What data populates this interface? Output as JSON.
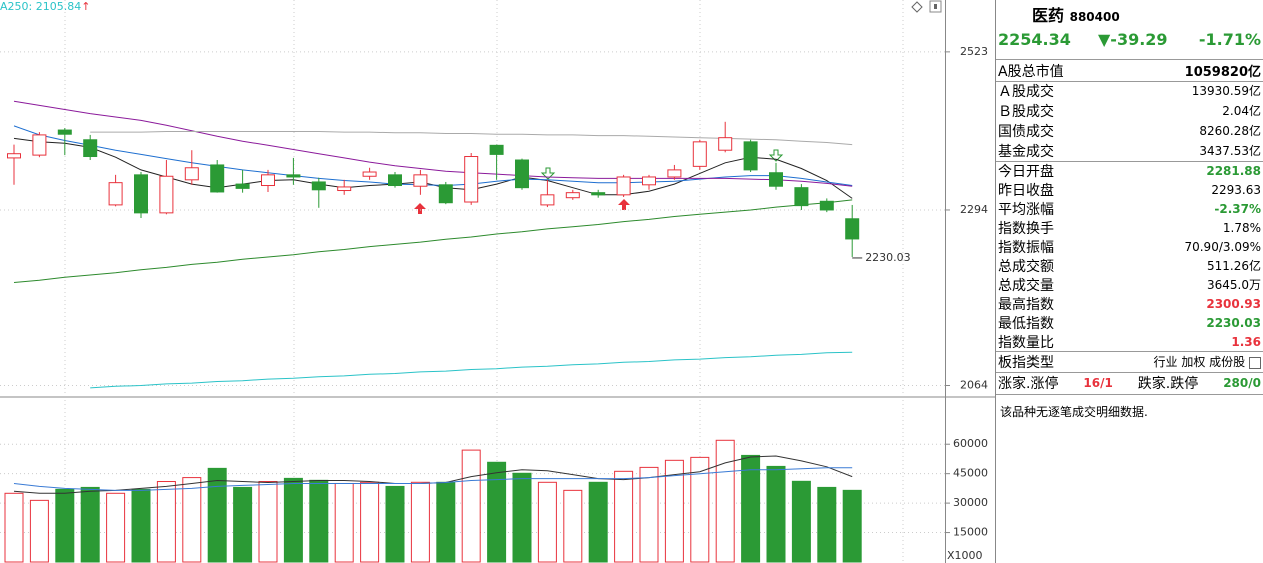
{
  "chart_data": [
    {
      "type": "candlestick",
      "log_scale": true,
      "grid": true,
      "header_label": "A250:",
      "header_arrow": "↑",
      "up_color": "#e8323c",
      "down_color": "#2b9a35",
      "ylim": [
        2051,
        2603
      ],
      "yticks": [
        2064,
        2294,
        2523
      ],
      "open": [
        2367,
        2371,
        2407,
        2393,
        2301,
        2343,
        2290,
        2336,
        2357,
        2330,
        2328,
        2343,
        2333,
        2321,
        2341,
        2343,
        2327,
        2329,
        2305,
        2385,
        2364,
        2301,
        2311,
        2318,
        2315,
        2329,
        2340,
        2355,
        2378,
        2390,
        2346,
        2325,
        2306,
        2281.88
      ],
      "high": [
        2386,
        2404,
        2410,
        2400,
        2343,
        2347,
        2364,
        2378,
        2364,
        2350,
        2350,
        2367,
        2339,
        2336,
        2353,
        2347,
        2350,
        2333,
        2374,
        2386,
        2366,
        2336,
        2322,
        2322,
        2343,
        2343,
        2357,
        2393,
        2419,
        2393,
        2360,
        2330,
        2310,
        2300.93
      ],
      "low": [
        2329,
        2368,
        2371,
        2364,
        2299,
        2283,
        2288,
        2329,
        2318,
        2318,
        2319,
        2329,
        2297,
        2315,
        2336,
        2325,
        2315,
        2302,
        2301,
        2336,
        2322,
        2298,
        2308,
        2311,
        2312,
        2322,
        2336,
        2350,
        2375,
        2347,
        2322,
        2294,
        2291,
        2230.03
      ],
      "close": [
        2373,
        2400,
        2401,
        2369,
        2332,
        2290,
        2341,
        2353,
        2319,
        2324,
        2343,
        2340,
        2322,
        2326,
        2347,
        2328,
        2343,
        2304,
        2369,
        2372,
        2325,
        2315,
        2318,
        2315,
        2340,
        2340,
        2350,
        2390,
        2396,
        2350,
        2327,
        2300,
        2294,
        2254.34
      ],
      "series": [
        {
          "color": "#222222",
          "values": [
            2395,
            2390,
            2388,
            2382,
            2368,
            2350,
            2340,
            2330,
            2325,
            2330,
            2335,
            2336,
            2330,
            2325,
            2328,
            2330,
            2333,
            2325,
            2322,
            2330,
            2340,
            2335,
            2325,
            2315,
            2315,
            2320,
            2330,
            2345,
            2360,
            2368,
            2365,
            2352,
            2335,
            2310
          ]
        },
        {
          "color": "#1e6fd0",
          "values": [
            2413,
            2400,
            2392,
            2385,
            2378,
            2372,
            2366,
            2360,
            2355,
            2350,
            2346,
            2342,
            2338,
            2335,
            2333,
            2330,
            2329,
            2328,
            2330,
            2334,
            2337,
            2336,
            2334,
            2332,
            2332,
            2333,
            2334,
            2337,
            2340,
            2342,
            2342,
            2338,
            2333,
            2328
          ]
        },
        {
          "color": "#8b1a9b",
          "values": [
            2449,
            2443,
            2437,
            2431,
            2426,
            2421,
            2414,
            2406,
            2398,
            2391,
            2385,
            2379,
            2373,
            2367,
            2361,
            2356,
            2352,
            2348,
            2346,
            2344,
            2342,
            2340,
            2339,
            2338,
            2338,
            2338,
            2338,
            2338,
            2338,
            2337,
            2336,
            2334,
            2331,
            2327
          ]
        },
        {
          "color": "#aaaaaa",
          "values": [
            null,
            null,
            null,
            2404,
            2404,
            2404,
            2405,
            2405,
            2405,
            2405,
            2405,
            2405,
            2405,
            2404,
            2404,
            2403,
            2403,
            2402,
            2402,
            2401,
            2401,
            2400,
            2400,
            2399,
            2399,
            2398,
            2397,
            2396,
            2395,
            2394,
            2393,
            2391,
            2389,
            2386
          ]
        },
        {
          "color": "#2d8a2d",
          "values": [
            2196,
            2199,
            2203,
            2206,
            2209,
            2213,
            2216,
            2220,
            2223,
            2227,
            2230,
            2233,
            2237,
            2240,
            2244,
            2247,
            2250,
            2254,
            2257,
            2261,
            2264,
            2268,
            2271,
            2274,
            2278,
            2281,
            2285,
            2288,
            2291,
            2294,
            2298,
            2301,
            2304,
            2308
          ]
        },
        {
          "color": "#2bc3c8",
          "values": [
            null,
            null,
            null,
            2061,
            2063,
            2064,
            2066,
            2067,
            2069,
            2070,
            2072,
            2073,
            2075,
            2076,
            2078,
            2079,
            2081,
            2082,
            2084,
            2085,
            2087,
            2088,
            2090,
            2091,
            2093,
            2094,
            2096,
            2097,
            2099,
            2100,
            2102,
            2103,
            2105,
            2105.84
          ]
        }
      ]
    },
    {
      "type": "bar",
      "grid": true,
      "y_unit": "X1000",
      "ylim": [
        0,
        81000
      ],
      "yticks": [
        60000,
        45000,
        30000,
        15000
      ],
      "values": [
        35000,
        31400,
        37000,
        38000,
        35000,
        37000,
        41000,
        43000,
        47700,
        38000,
        41000,
        42600,
        41600,
        40000,
        40600,
        38500,
        40600,
        40600,
        57000,
        50800,
        45200,
        40600,
        36500,
        40600,
        46200,
        48200,
        51800,
        53300,
        62000,
        54300,
        48700,
        41100,
        38000,
        36500
      ],
      "series": [
        {
          "color": "#333333",
          "values": [
            36000,
            35000,
            35000,
            36000,
            36500,
            37500,
            38500,
            40000,
            41500,
            41000,
            40500,
            41000,
            41500,
            41500,
            41000,
            40000,
            40000,
            40500,
            43500,
            45500,
            47000,
            46500,
            44500,
            42500,
            42000,
            43000,
            44500,
            46000,
            50500,
            53500,
            54000,
            51500,
            48500,
            43500
          ]
        },
        {
          "color": "#3a7bd5",
          "values": [
            40000,
            38500,
            37500,
            37000,
            36500,
            36500,
            37000,
            37500,
            38500,
            39000,
            39500,
            40000,
            40000,
            40000,
            40000,
            40000,
            40000,
            40500,
            41500,
            42000,
            42500,
            42500,
            42500,
            42500,
            42500,
            43000,
            44000,
            45000,
            46000,
            47000,
            47000,
            47500,
            48000,
            48000
          ]
        }
      ]
    }
  ],
  "panel": {
    "name": "医药",
    "code": "880400",
    "price": "2254.34",
    "change": "▼-39.29",
    "change_pct": "-1.71%",
    "quote_color": "#2b9a35",
    "sections": [
      [
        {
          "label": "A股总市值",
          "value": "1059820亿"
        }
      ],
      [
        {
          "label": "Ａ股成交",
          "value": "13930.59亿"
        },
        {
          "label": "Ｂ股成交",
          "value": "2.04亿"
        },
        {
          "label": "国债成交",
          "value": "8260.28亿"
        },
        {
          "label": "基金成交",
          "value": "3437.53亿"
        }
      ],
      [
        {
          "label": "今日开盘",
          "value": "2281.88",
          "color": "#2b9a35"
        },
        {
          "label": "昨日收盘",
          "value": "2293.63"
        },
        {
          "label": "平均涨幅",
          "value": "-2.37%",
          "color": "#2b9a35"
        },
        {
          "label": "指数换手",
          "value": "1.78%"
        },
        {
          "label": "指数振幅",
          "value": "70.90/3.09%"
        },
        {
          "label": "总成交额",
          "value": "511.26亿"
        },
        {
          "label": "总成交量",
          "value": "3645.0万"
        },
        {
          "label": "最高指数",
          "value": "2300.93",
          "color": "#e8323c"
        },
        {
          "label": "最低指数",
          "value": "2230.03",
          "color": "#2b9a35"
        },
        {
          "label": "指数量比",
          "value": "1.36",
          "color": "#e8323c"
        }
      ]
    ],
    "type_row": {
      "label": "板指类型",
      "value": "行业 加权 成份股"
    },
    "breadth_row": {
      "up_label": "涨家.涨停",
      "up_value": "16/1",
      "down_label": "跌家.跌停",
      "down_value": "280/0"
    },
    "note": "该品种无逐笔成交明细数据."
  }
}
